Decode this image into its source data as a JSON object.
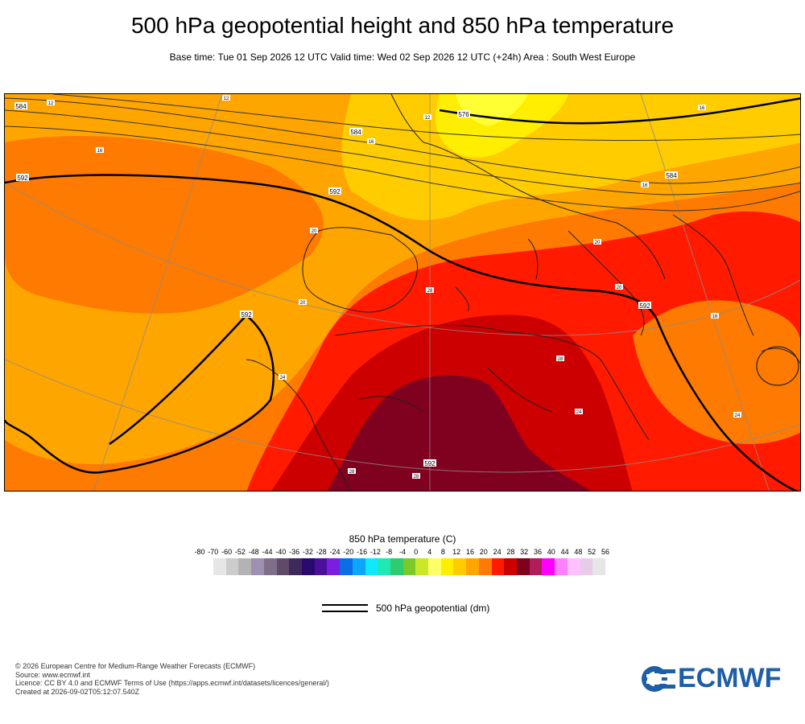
{
  "header": {
    "title": "500 hPa geopotential height and 850 hPa temperature",
    "subtitle": "Base time: Tue 01 Sep 2026 12 UTC Valid time: Wed 02 Sep 2026 12 UTC (+24h) Area : South West Europe"
  },
  "map": {
    "contour_labels": [
      "584",
      "576",
      "584",
      "584",
      "592",
      "592",
      "592",
      "592",
      "592"
    ],
    "temperature_labels": [
      "12",
      "12",
      "16",
      "16",
      "20",
      "20",
      "24",
      "24",
      "28",
      "28",
      "28",
      "20",
      "16",
      "12",
      "16",
      "16",
      "20",
      "28",
      "24"
    ]
  },
  "legend": {
    "title": "850 hPa temperature (C)",
    "ticks": [
      "-80",
      "-70",
      "-60",
      "-52",
      "-48",
      "-44",
      "-40",
      "-36",
      "-32",
      "-28",
      "-24",
      "-20",
      "-16",
      "-12",
      "-8",
      "-4",
      "0",
      "4",
      "8",
      "12",
      "16",
      "20",
      "24",
      "28",
      "32",
      "36",
      "40",
      "44",
      "48",
      "52",
      "56"
    ],
    "colors": [
      "#e6e6e6",
      "#cccccc",
      "#b3b3b3",
      "#9f8fb0",
      "#7f6f8a",
      "#5f4a6a",
      "#3d2a5a",
      "#2b0a6e",
      "#4b0f9a",
      "#7a1ee0",
      "#0a6ee8",
      "#0aa6ff",
      "#0fe8ff",
      "#1ee8b4",
      "#2ecc71",
      "#7ac82a",
      "#c8e828",
      "#ffff66",
      "#ffee00",
      "#ffcc00",
      "#ffa500",
      "#ff7a00",
      "#ff1a00",
      "#cc0000",
      "#800020",
      "#b01e5a",
      "#ff00ff",
      "#ff80ff",
      "#ffc0ff",
      "#e6cce6",
      "#e6e6e6"
    ],
    "geopotential_label": "500 hPa geopotential (dm)"
  },
  "footer": {
    "lines": [
      "© 2026 European Centre for Medium-Range Weather Forecasts (ECMWF)",
      "Source: www.ecmwf.int",
      "Licence: CC BY 4.0 and ECMWF Terms of Use (https://apps.ecmwf.int/datasets/licences/general/)",
      "Created at 2026-09-02T05:12:07.540Z"
    ],
    "logo_text": "ECMWF",
    "logo_color": "#1d5ea6"
  }
}
